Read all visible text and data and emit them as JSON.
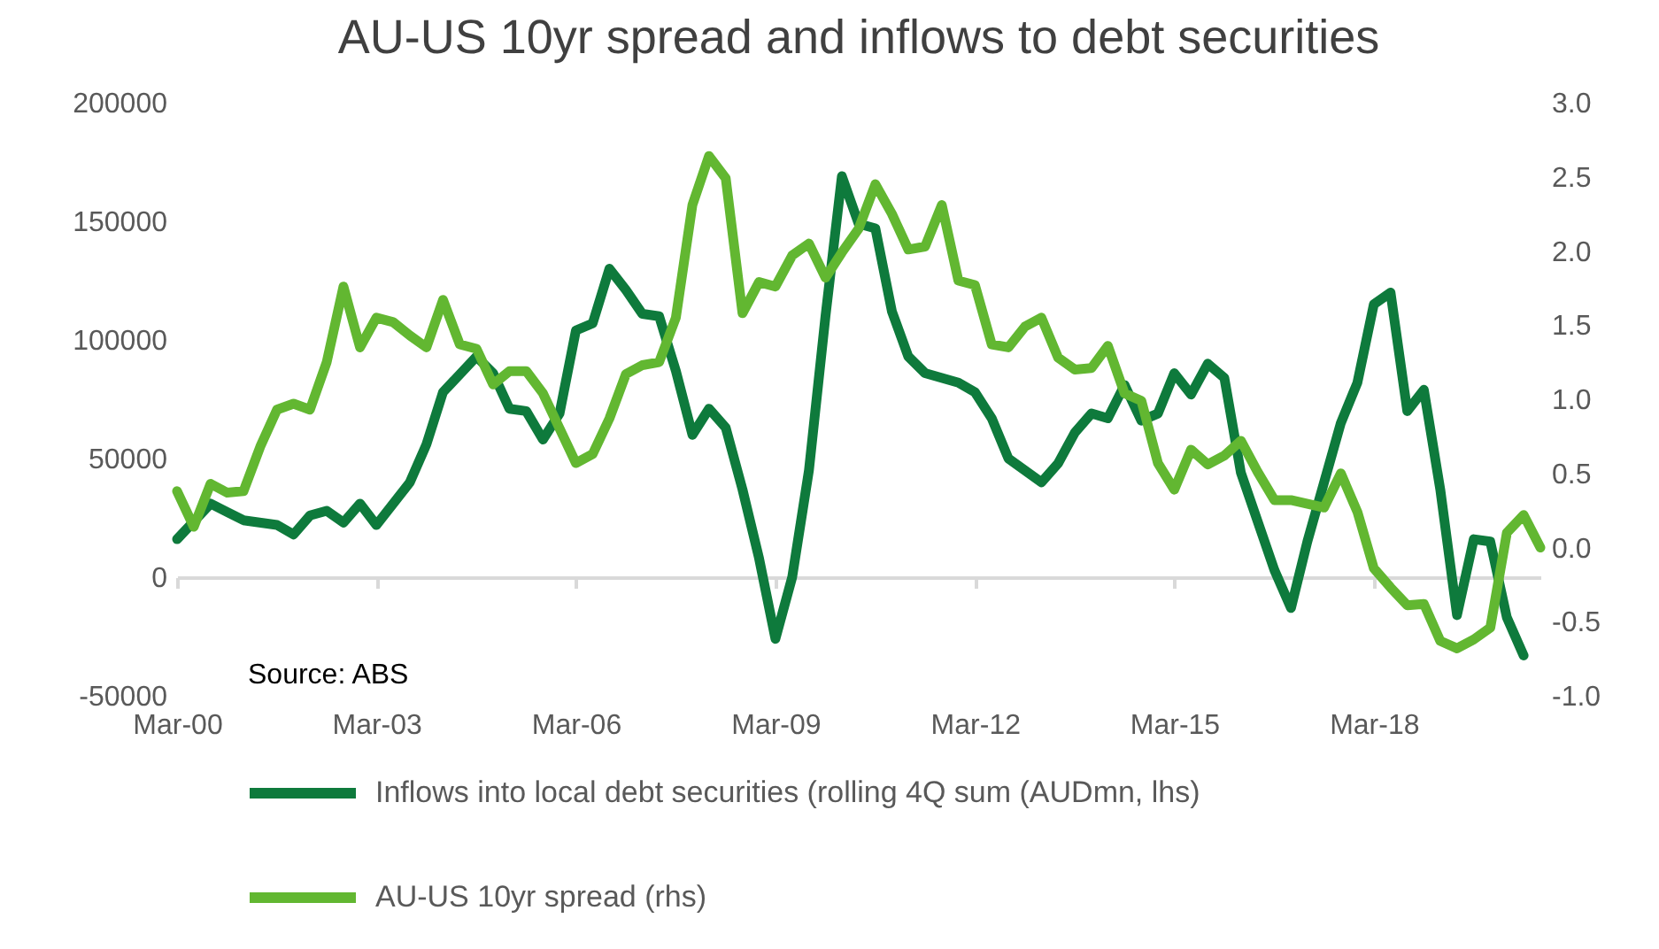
{
  "chart_data": {
    "type": "line",
    "title": "AU-US 10yr spread and inflows to debt securities",
    "annotations": [
      "Source: ABS"
    ],
    "legend": "bottom",
    "line_style": "solid",
    "xlim": [
      "2000-03",
      "2020-09"
    ],
    "xticks": [
      {
        "value": "2000-03",
        "label": "Mar-00"
      },
      {
        "value": "2003-03",
        "label": "Mar-03"
      },
      {
        "value": "2006-03",
        "label": "Mar-06"
      },
      {
        "value": "2009-03",
        "label": "Mar-09"
      },
      {
        "value": "2012-03",
        "label": "Mar-12"
      },
      {
        "value": "2015-03",
        "label": "Mar-15"
      },
      {
        "value": "2018-03",
        "label": "Mar-18"
      }
    ],
    "ylim": [
      -50000,
      200000
    ],
    "yticks": [
      -50000,
      0,
      50000,
      100000,
      150000,
      200000
    ],
    "y2lim": [
      -1,
      3
    ],
    "y2ticks": [
      {
        "value": -1,
        "label": "-1.0"
      },
      {
        "value": -0.5,
        "label": "-0.5"
      },
      {
        "value": 0,
        "label": "0.0"
      },
      {
        "value": 0.5,
        "label": "0.5"
      },
      {
        "value": 1,
        "label": "1.0"
      },
      {
        "value": 1.5,
        "label": "1.5"
      },
      {
        "value": 2,
        "label": "2.0"
      },
      {
        "value": 2.5,
        "label": "2.5"
      },
      {
        "value": 3,
        "label": "3.0"
      }
    ],
    "series": [
      {
        "name": "Inflows into local debt securities (rolling 4Q sum (AUDmn, lhs)",
        "color": "#0e7a3c",
        "x": [
          "2000-03",
          "2000-09",
          "2001-03",
          "2001-09",
          "2001-12",
          "2002-03",
          "2002-06",
          "2002-09",
          "2002-12",
          "2003-03",
          "2003-09",
          "2003-12",
          "2004-03",
          "2004-09",
          "2004-12",
          "2005-03",
          "2005-06",
          "2005-09",
          "2005-12",
          "2006-03",
          "2006-06",
          "2006-09",
          "2006-12",
          "2007-03",
          "2007-06",
          "2007-09",
          "2007-12",
          "2008-03",
          "2008-06",
          "2008-09",
          "2008-12",
          "2009-03",
          "2009-06",
          "2009-09",
          "2009-12",
          "2010-03",
          "2010-06",
          "2010-09",
          "2010-12",
          "2011-03",
          "2011-06",
          "2011-12",
          "2012-03",
          "2012-06",
          "2012-09",
          "2013-03",
          "2013-06",
          "2013-09",
          "2013-12",
          "2014-03",
          "2014-06",
          "2014-09",
          "2014-12",
          "2015-03",
          "2015-06",
          "2015-09",
          "2015-12",
          "2016-03",
          "2016-09",
          "2016-12",
          "2017-03",
          "2017-09",
          "2017-12",
          "2018-03",
          "2018-06",
          "2018-09",
          "2018-12",
          "2019-03",
          "2019-06",
          "2019-09",
          "2019-12",
          "2020-03",
          "2020-06"
        ],
        "values": [
          16000,
          31000,
          24000,
          22000,
          18000,
          26000,
          28000,
          23000,
          31000,
          22000,
          40000,
          56000,
          78000,
          93000,
          86000,
          71000,
          70000,
          58000,
          69000,
          104000,
          107000,
          130000,
          121000,
          111000,
          110000,
          87000,
          60000,
          71000,
          63000,
          37000,
          8000,
          -26000,
          0,
          45000,
          110000,
          169000,
          149000,
          147000,
          112000,
          93000,
          86000,
          82000,
          78000,
          67000,
          50000,
          40000,
          48000,
          61000,
          69000,
          67000,
          81000,
          66000,
          69000,
          86000,
          77000,
          90000,
          84000,
          44000,
          3000,
          -13000,
          15000,
          65000,
          82000,
          115000,
          120000,
          70000,
          79000,
          37000,
          -16000,
          16000,
          15000,
          -17000,
          -33000
        ]
      },
      {
        "name": "AU-US 10yr spread (rhs)",
        "color": "#62b731",
        "axis": "y2",
        "x": [
          "2000-03",
          "2000-06",
          "2000-09",
          "2000-12",
          "2001-03",
          "2001-06",
          "2001-09",
          "2001-12",
          "2002-03",
          "2002-06",
          "2002-09",
          "2002-12",
          "2003-03",
          "2003-06",
          "2003-09",
          "2003-12",
          "2004-03",
          "2004-06",
          "2004-09",
          "2004-12",
          "2005-03",
          "2005-06",
          "2005-09",
          "2006-03",
          "2006-06",
          "2006-09",
          "2006-12",
          "2007-03",
          "2007-06",
          "2007-09",
          "2007-12",
          "2008-03",
          "2008-06",
          "2008-09",
          "2008-12",
          "2009-03",
          "2009-06",
          "2009-09",
          "2009-12",
          "2010-03",
          "2010-06",
          "2010-09",
          "2010-12",
          "2011-03",
          "2011-06",
          "2011-09",
          "2011-12",
          "2012-03",
          "2012-06",
          "2012-09",
          "2012-12",
          "2013-03",
          "2013-06",
          "2013-09",
          "2013-12",
          "2014-03",
          "2014-06",
          "2014-09",
          "2014-12",
          "2015-03",
          "2015-06",
          "2015-09",
          "2015-12",
          "2016-03",
          "2016-06",
          "2016-09",
          "2016-12",
          "2017-06",
          "2017-09",
          "2017-12",
          "2018-03",
          "2018-06",
          "2018-09",
          "2018-12",
          "2019-03",
          "2019-06",
          "2019-09",
          "2019-12",
          "2020-03",
          "2020-06",
          "2020-09"
        ],
        "values": [
          0.38,
          0.14,
          0.43,
          0.37,
          0.38,
          0.68,
          0.93,
          0.97,
          0.93,
          1.25,
          1.76,
          1.35,
          1.55,
          1.52,
          1.43,
          1.35,
          1.67,
          1.37,
          1.34,
          1.1,
          1.19,
          1.19,
          1.04,
          0.57,
          0.63,
          0.87,
          1.17,
          1.23,
          1.25,
          1.55,
          2.31,
          2.64,
          2.49,
          1.58,
          1.79,
          1.76,
          1.97,
          2.05,
          1.82,
          1.99,
          2.15,
          2.45,
          2.25,
          2.01,
          2.03,
          2.31,
          1.8,
          1.77,
          1.37,
          1.35,
          1.49,
          1.55,
          1.28,
          1.2,
          1.21,
          1.36,
          1.04,
          0.99,
          0.57,
          0.39,
          0.66,
          0.56,
          0.62,
          0.72,
          0.51,
          0.32,
          0.32,
          0.27,
          0.5,
          0.24,
          -0.14,
          -0.27,
          -0.39,
          -0.38,
          -0.63,
          -0.68,
          -0.62,
          -0.54,
          0.1,
          0.22,
          0.0
        ]
      }
    ]
  }
}
